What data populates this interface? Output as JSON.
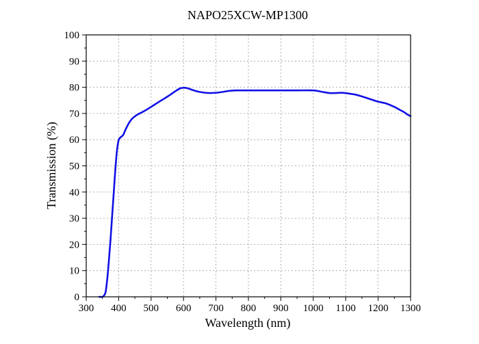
{
  "chart_data": {
    "type": "line",
    "title": "NAPO25XCW-MP1300",
    "xlabel": "Wavelength (nm)",
    "ylabel": "Transmission (%)",
    "xlim": [
      300,
      1300
    ],
    "ylim": [
      0,
      100
    ],
    "x_ticks": [
      300,
      400,
      500,
      600,
      700,
      800,
      900,
      1000,
      1100,
      1200,
      1300
    ],
    "y_ticks": [
      0,
      10,
      20,
      30,
      40,
      50,
      60,
      70,
      80,
      90,
      100
    ],
    "grid": true,
    "legend": "none",
    "series": [
      {
        "color": "#1010e6",
        "x": [
          340,
          350,
          355,
          360,
          365,
          370,
          375,
          380,
          385,
          390,
          395,
          400,
          405,
          410,
          415,
          420,
          430,
          440,
          450,
          460,
          480,
          500,
          525,
          550,
          575,
          590,
          600,
          610,
          620,
          640,
          660,
          680,
          700,
          720,
          740,
          760,
          800,
          850,
          900,
          950,
          1000,
          1025,
          1050,
          1070,
          1090,
          1110,
          1130,
          1150,
          1175,
          1200,
          1225,
          1250,
          1265,
          1280,
          1290,
          1300
        ],
        "y": [
          0,
          0,
          0.5,
          2,
          7,
          14,
          22,
          31,
          40,
          49,
          56,
          59.8,
          60.8,
          61.3,
          62,
          63.5,
          66,
          67.8,
          68.9,
          69.7,
          71,
          72.5,
          74.5,
          76.4,
          78.5,
          79.6,
          79.8,
          79.7,
          79.3,
          78.5,
          78,
          77.8,
          77.9,
          78.2,
          78.6,
          78.8,
          78.8,
          78.8,
          78.8,
          78.8,
          78.8,
          78.3,
          77.8,
          77.8,
          77.9,
          77.6,
          77.2,
          76.5,
          75.5,
          74.5,
          73.8,
          72.5,
          71.5,
          70.5,
          69.6,
          69
        ]
      }
    ]
  }
}
